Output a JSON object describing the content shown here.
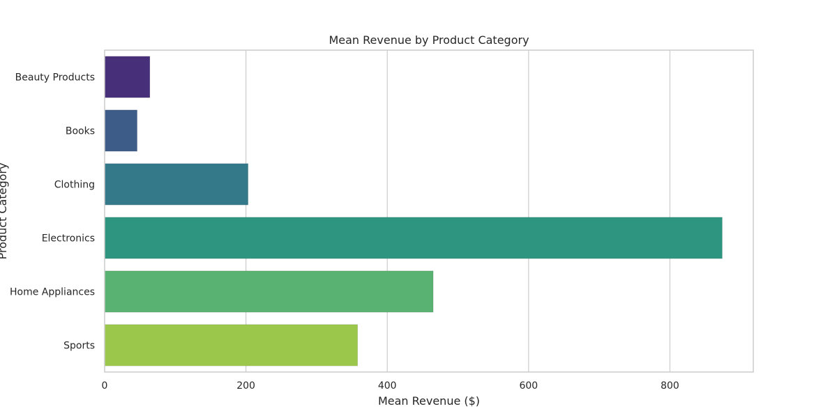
{
  "chart_data": {
    "type": "bar",
    "orientation": "horizontal",
    "title": "Mean Revenue by Product Category",
    "xlabel": "Mean Revenue ($)",
    "ylabel": "Product Category",
    "categories": [
      "Beauty Products",
      "Books",
      "Clothing",
      "Electronics",
      "Home Appliances",
      "Sports"
    ],
    "values": [
      64,
      46,
      203,
      874,
      465,
      358
    ],
    "colors": [
      "#482f7a",
      "#3e5c88",
      "#33798a",
      "#2e9580",
      "#5ab272",
      "#9bc84b"
    ],
    "xlim": [
      0,
      918
    ],
    "xticks": [
      0,
      200,
      400,
      600,
      800
    ],
    "grid": true,
    "legend": "none"
  }
}
